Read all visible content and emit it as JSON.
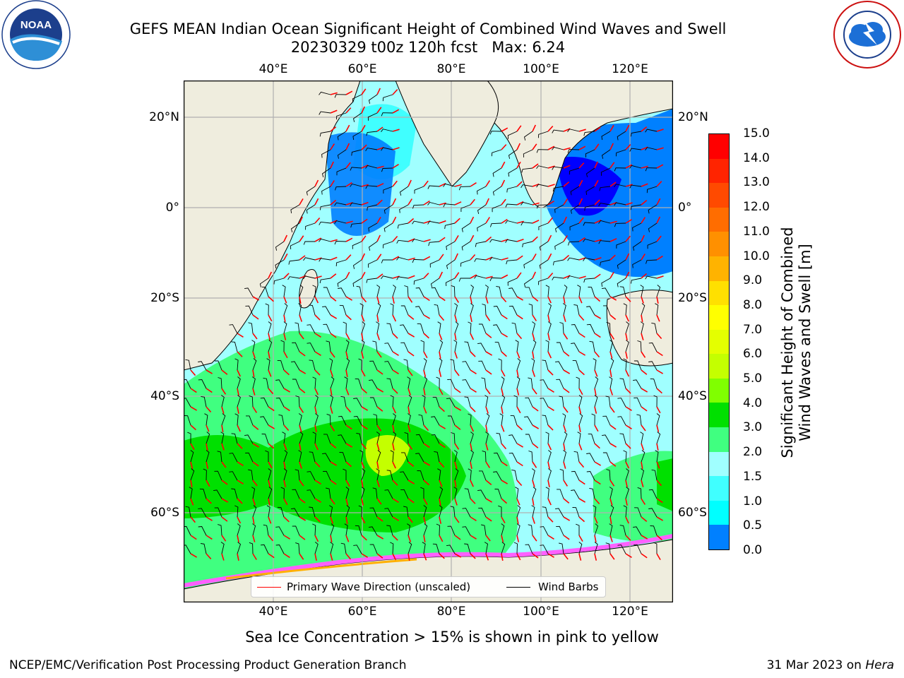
{
  "header": {
    "title_line1": "GEFS MEAN Indian Ocean Significant Height of Combined Wind Waves and Swell",
    "title_line2": "20230329 t00z 120h fcst   Max: 6.24"
  },
  "logos": {
    "left": {
      "text": "NOAA",
      "ring_text": "NATIONAL OCEANIC AND ATMOSPHERIC ADMINISTRATION · U.S. DEPARTMENT OF COMMERCE"
    },
    "right": {
      "ring_text": "NATIONAL WEATHER SERVICE"
    }
  },
  "map": {
    "lon_ticks": [
      "40°E",
      "60°E",
      "80°E",
      "100°E",
      "120°E"
    ],
    "lat_ticks_left": [
      "20°N",
      "0°",
      "20°S",
      "40°S",
      "60°S"
    ],
    "lat_ticks_right": [
      "20°N",
      "0°",
      "20°S",
      "40°S",
      "60°S"
    ],
    "colors": {
      "land": "#efedde",
      "coast": "#000000",
      "grid": "#b0b0b0",
      "arrow": "#ff0000",
      "barb": "#000000"
    }
  },
  "legend": {
    "wave_label": "Primary Wave Direction (unscaled)",
    "barb_label": "Wind Barbs",
    "wave_color": "#ff0000",
    "barb_color": "#000000"
  },
  "colorbar": {
    "title_line1": "Significant Height of Combined",
    "title_line2": "Wind Waves and Swell [m]",
    "labels": [
      "15.0",
      "14.0",
      "13.0",
      "12.0",
      "11.0",
      "10.0",
      "9.0",
      "8.0",
      "7.0",
      "6.0",
      "5.0",
      "4.0",
      "3.0",
      "2.0",
      "1.5",
      "1.0",
      "0.5",
      "0.0"
    ],
    "colors": [
      "#ff0000",
      "#ff2400",
      "#ff4a00",
      "#ff6d00",
      "#ff9000",
      "#ffb300",
      "#ffe000",
      "#ffff00",
      "#e4ff00",
      "#c4ff00",
      "#80ff00",
      "#00e000",
      "#40ff80",
      "#a0ffff",
      "#40ffff",
      "#00ffff",
      "#0080ff",
      "#0000ff"
    ]
  },
  "footer": {
    "ice_note": "Sea Ice Concentration > 15% is shown in pink to yellow",
    "left": "NCEP/EMC/Verification Post Processing Product Generation Branch",
    "right_date": "31 Mar 2023 on ",
    "right_host": "Hera"
  }
}
